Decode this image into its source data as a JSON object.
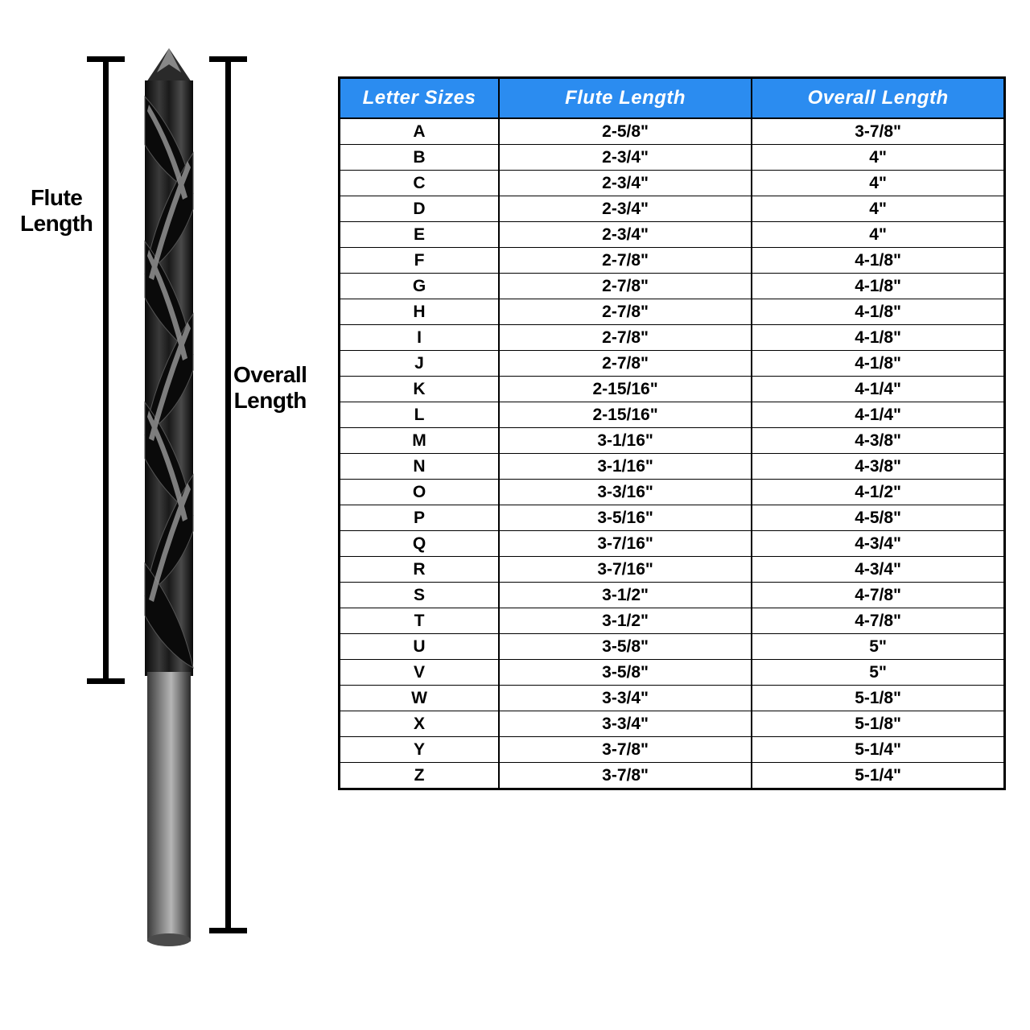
{
  "diagram": {
    "flute_label_l1": "Flute",
    "flute_label_l2": "Length",
    "overall_label_l1": "Overall",
    "overall_label_l2": "Length"
  },
  "table": {
    "header_bg": "#2b8cf0",
    "header_fg": "#ffffff",
    "border_color": "#000000",
    "columns": [
      "Letter Sizes",
      "Flute Length",
      "Overall Length"
    ],
    "rows": [
      [
        "A",
        "2-5/8\"",
        "3-7/8\""
      ],
      [
        "B",
        "2-3/4\"",
        "4\""
      ],
      [
        "C",
        "2-3/4\"",
        "4\""
      ],
      [
        "D",
        "2-3/4\"",
        "4\""
      ],
      [
        "E",
        "2-3/4\"",
        "4\""
      ],
      [
        "F",
        "2-7/8\"",
        "4-1/8\""
      ],
      [
        "G",
        "2-7/8\"",
        "4-1/8\""
      ],
      [
        "H",
        "2-7/8\"",
        "4-1/8\""
      ],
      [
        "I",
        "2-7/8\"",
        "4-1/8\""
      ],
      [
        "J",
        "2-7/8\"",
        "4-1/8\""
      ],
      [
        "K",
        "2-15/16\"",
        "4-1/4\""
      ],
      [
        "L",
        "2-15/16\"",
        "4-1/4\""
      ],
      [
        "M",
        "3-1/16\"",
        "4-3/8\""
      ],
      [
        "N",
        "3-1/16\"",
        "4-3/8\""
      ],
      [
        "O",
        "3-3/16\"",
        "4-1/2\""
      ],
      [
        "P",
        "3-5/16\"",
        "4-5/8\""
      ],
      [
        "Q",
        "3-7/16\"",
        "4-3/4\""
      ],
      [
        "R",
        "3-7/16\"",
        "4-3/4\""
      ],
      [
        "S",
        "3-1/2\"",
        "4-7/8\""
      ],
      [
        "T",
        "3-1/2\"",
        "4-7/8\""
      ],
      [
        "U",
        "3-5/8\"",
        "5\""
      ],
      [
        "V",
        "3-5/8\"",
        "5\""
      ],
      [
        "W",
        "3-3/4\"",
        "5-1/8\""
      ],
      [
        "X",
        "3-3/4\"",
        "5-1/8\""
      ],
      [
        "Y",
        "3-7/8\"",
        "5-1/4\""
      ],
      [
        "Z",
        "3-7/8\"",
        "5-1/4\""
      ]
    ]
  },
  "drill": {
    "body_fill_dark": "#1a1a1a",
    "body_fill_mid": "#3a3a3a",
    "highlight": "#9a9a9a",
    "shank_fill": "#6b6b6b"
  }
}
